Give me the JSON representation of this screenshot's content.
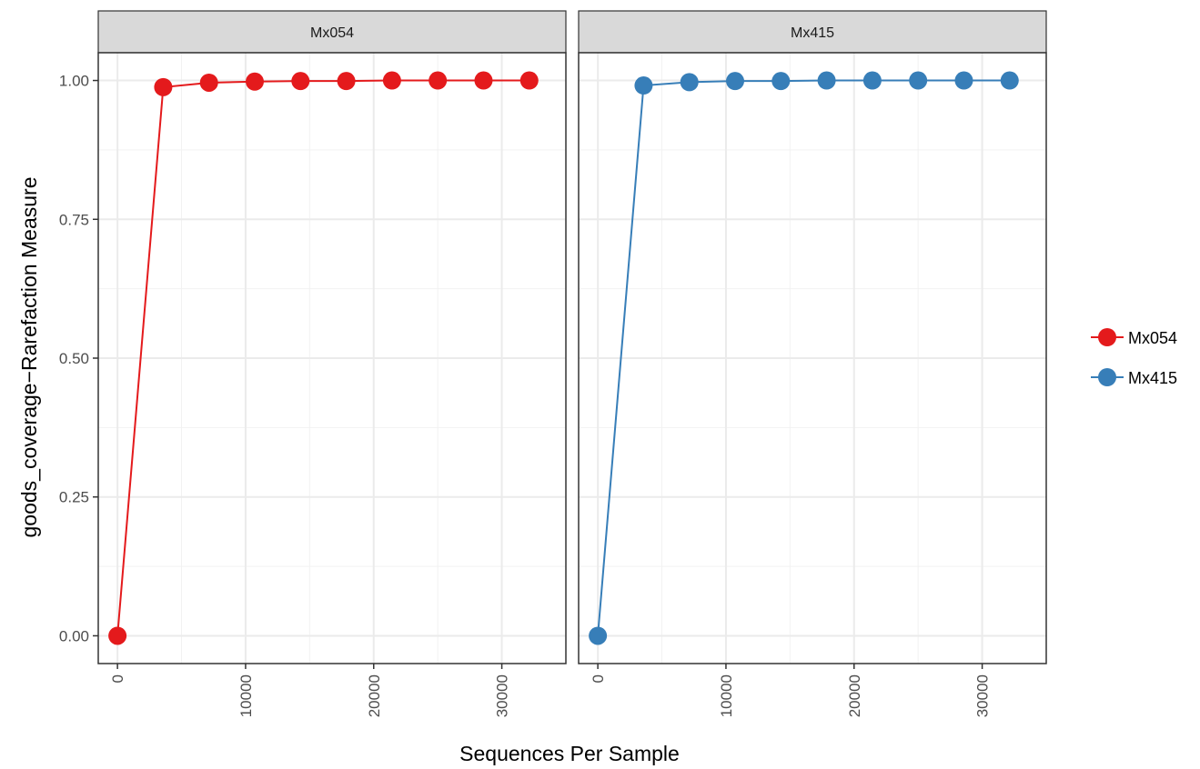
{
  "chart_data": {
    "type": "line",
    "xlabel": "Sequences Per Sample",
    "ylabel": "goods_coverage−Rarefaction Measure",
    "xlim": [
      -1500,
      35000
    ],
    "ylim": [
      -0.05,
      1.05
    ],
    "x_ticks": [
      0,
      10000,
      20000,
      30000
    ],
    "x_tick_labels": [
      "0",
      "10000",
      "20000",
      "30000"
    ],
    "y_ticks": [
      0,
      0.25,
      0.5,
      0.75,
      1.0
    ],
    "y_tick_labels": [
      "0.00",
      "0.25",
      "0.50",
      "0.75",
      "1.00"
    ],
    "grid": true,
    "legend_position": "right",
    "x": [
      0,
      3571,
      7143,
      10714,
      14286,
      17857,
      21429,
      25000,
      28571,
      32143
    ],
    "panels": [
      {
        "title": "Mx054",
        "series": [
          {
            "name": "Mx054",
            "color": "#e41a1c",
            "values": [
              0.0,
              0.988,
              0.996,
              0.998,
              0.999,
              0.999,
              1.0,
              1.0,
              1.0,
              1.0
            ]
          }
        ]
      },
      {
        "title": "Mx415",
        "series": [
          {
            "name": "Mx415",
            "color": "#377eb8",
            "values": [
              0.0,
              0.991,
              0.997,
              0.999,
              0.999,
              1.0,
              1.0,
              1.0,
              1.0,
              1.0
            ]
          }
        ]
      }
    ],
    "legend": [
      {
        "name": "Mx054",
        "color": "#e41a1c"
      },
      {
        "name": "Mx415",
        "color": "#377eb8"
      }
    ]
  }
}
